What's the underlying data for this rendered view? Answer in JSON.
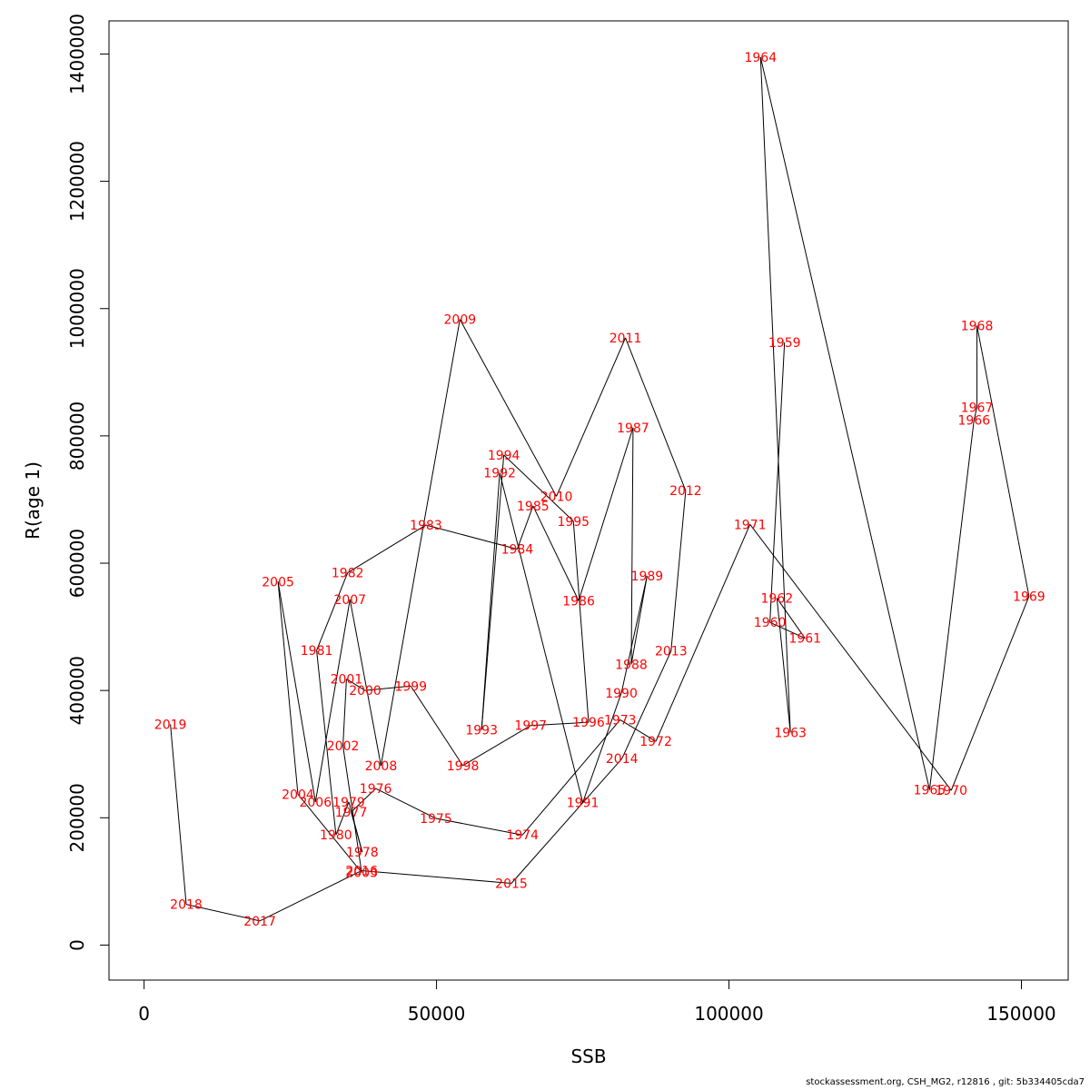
{
  "chart_data": {
    "type": "line",
    "xlabel": "SSB",
    "ylabel": "R(age 1)",
    "xlim": [
      -6000,
      158000
    ],
    "ylim": [
      -55000,
      1452000
    ],
    "x_ticks": [
      0,
      50000,
      100000,
      150000
    ],
    "y_ticks": [
      0,
      200000,
      400000,
      600000,
      800000,
      1000000,
      1200000,
      1400000
    ],
    "grid": false,
    "series": [
      {
        "line_color": "#000000",
        "label_color": "#ff0000",
        "points": [
          {
            "year": "1959",
            "x": 109500,
            "y": 947000
          },
          {
            "year": "1960",
            "x": 107000,
            "y": 507000
          },
          {
            "year": "1961",
            "x": 113000,
            "y": 482000
          },
          {
            "year": "1962",
            "x": 108200,
            "y": 545000
          },
          {
            "year": "1963",
            "x": 110500,
            "y": 334000
          },
          {
            "year": "1964",
            "x": 105400,
            "y": 1395000
          },
          {
            "year": "1965",
            "x": 134300,
            "y": 244000
          },
          {
            "year": "1966",
            "x": 141900,
            "y": 825000
          },
          {
            "year": "1967",
            "x": 142400,
            "y": 845000
          },
          {
            "year": "1968",
            "x": 142400,
            "y": 973000
          },
          {
            "year": "1969",
            "x": 151300,
            "y": 548000
          },
          {
            "year": "1970",
            "x": 138000,
            "y": 243000
          },
          {
            "year": "1971",
            "x": 103600,
            "y": 661000
          },
          {
            "year": "1972",
            "x": 87500,
            "y": 320000
          },
          {
            "year": "1973",
            "x": 81400,
            "y": 354000
          },
          {
            "year": "1974",
            "x": 64700,
            "y": 173000
          },
          {
            "year": "1975",
            "x": 49900,
            "y": 199000
          },
          {
            "year": "1976",
            "x": 39600,
            "y": 246000
          },
          {
            "year": "1977",
            "x": 35400,
            "y": 209000
          },
          {
            "year": "1978",
            "x": 37300,
            "y": 146000
          },
          {
            "year": "1979",
            "x": 35000,
            "y": 225000
          },
          {
            "year": "1980",
            "x": 32800,
            "y": 173000
          },
          {
            "year": "1981",
            "x": 29500,
            "y": 463000
          },
          {
            "year": "1982",
            "x": 34800,
            "y": 585000
          },
          {
            "year": "1983",
            "x": 48200,
            "y": 660000
          },
          {
            "year": "1984",
            "x": 63800,
            "y": 622000
          },
          {
            "year": "1985",
            "x": 66500,
            "y": 690000
          },
          {
            "year": "1986",
            "x": 74300,
            "y": 541000
          },
          {
            "year": "1987",
            "x": 83600,
            "y": 813000
          },
          {
            "year": "1988",
            "x": 83300,
            "y": 441000
          },
          {
            "year": "1989",
            "x": 86000,
            "y": 580000
          },
          {
            "year": "1990",
            "x": 81600,
            "y": 396000
          },
          {
            "year": "1991",
            "x": 75000,
            "y": 224000
          },
          {
            "year": "1992",
            "x": 60800,
            "y": 742000
          },
          {
            "year": "1993",
            "x": 57700,
            "y": 338000
          },
          {
            "year": "1994",
            "x": 61500,
            "y": 770000
          },
          {
            "year": "1995",
            "x": 73400,
            "y": 666000
          },
          {
            "year": "1996",
            "x": 76000,
            "y": 350000
          },
          {
            "year": "1997",
            "x": 66100,
            "y": 345000
          },
          {
            "year": "1998",
            "x": 54500,
            "y": 282000
          },
          {
            "year": "1999",
            "x": 45600,
            "y": 407000
          },
          {
            "year": "2000",
            "x": 37800,
            "y": 400000
          },
          {
            "year": "2001",
            "x": 34600,
            "y": 418000
          },
          {
            "year": "2002",
            "x": 34000,
            "y": 313000
          },
          {
            "year": "2003",
            "x": 37200,
            "y": 114000
          },
          {
            "year": "2004",
            "x": 26300,
            "y": 237000
          },
          {
            "year": "2005",
            "x": 22900,
            "y": 571000
          },
          {
            "year": "2006",
            "x": 29300,
            "y": 225000
          },
          {
            "year": "2007",
            "x": 35200,
            "y": 543000
          },
          {
            "year": "2008",
            "x": 40500,
            "y": 282000
          },
          {
            "year": "2009",
            "x": 54000,
            "y": 983000
          },
          {
            "year": "2010",
            "x": 70500,
            "y": 705000
          },
          {
            "year": "2011",
            "x": 82300,
            "y": 954000
          },
          {
            "year": "2012",
            "x": 92600,
            "y": 714000
          },
          {
            "year": "2013",
            "x": 90100,
            "y": 462000
          },
          {
            "year": "2014",
            "x": 81700,
            "y": 293000
          },
          {
            "year": "2015",
            "x": 62800,
            "y": 97000
          },
          {
            "year": "2016",
            "x": 37200,
            "y": 117000
          },
          {
            "year": "2017",
            "x": 19800,
            "y": 38000
          },
          {
            "year": "2018",
            "x": 7200,
            "y": 64000
          },
          {
            "year": "2019",
            "x": 4500,
            "y": 347000
          }
        ]
      }
    ]
  },
  "footer_text": "stockassessment.org, CSH_MG2, r12816 , git: 5b334405cda7"
}
